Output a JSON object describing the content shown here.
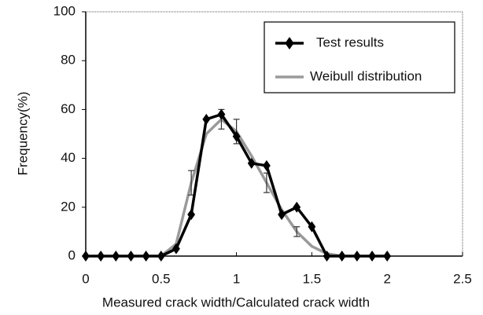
{
  "chart_data": {
    "type": "line",
    "xlabel": "Measured crack width/Calculated crack width",
    "ylabel": "Frequency(%)",
    "xlim": [
      0,
      2.5
    ],
    "xticks": [
      0,
      0.5,
      1,
      1.5,
      2,
      2.5
    ],
    "ylim": [
      0,
      100
    ],
    "yticks": [
      0,
      20,
      40,
      60,
      80,
      100
    ],
    "legend": "upper right",
    "series": [
      {
        "name": "Test results",
        "color": "#000000",
        "marker": "diamond",
        "x": [
          0,
          0.1,
          0.2,
          0.3,
          0.4,
          0.5,
          0.6,
          0.7,
          0.8,
          0.9,
          1.0,
          1.1,
          1.2,
          1.3,
          1.4,
          1.5,
          1.6,
          1.7,
          1.8,
          1.9,
          2.0
        ],
        "values": [
          0,
          0,
          0,
          0,
          0,
          0,
          3,
          17,
          56,
          58,
          49,
          38,
          37,
          17,
          20,
          12,
          0,
          0,
          0,
          0,
          0
        ]
      },
      {
        "name": "Weibull distribution",
        "color": "#9a9a9a",
        "x": [
          0.5,
          0.6,
          0.7,
          0.8,
          0.9,
          1.0,
          1.1,
          1.2,
          1.3,
          1.4,
          1.5,
          1.6,
          1.7
        ],
        "values": [
          0,
          5,
          30,
          50,
          56,
          51,
          41,
          30,
          19,
          10,
          4,
          1,
          0
        ],
        "errors": [
          null,
          null,
          5,
          null,
          4,
          5,
          null,
          4,
          null,
          2,
          null,
          null,
          null
        ]
      }
    ]
  }
}
